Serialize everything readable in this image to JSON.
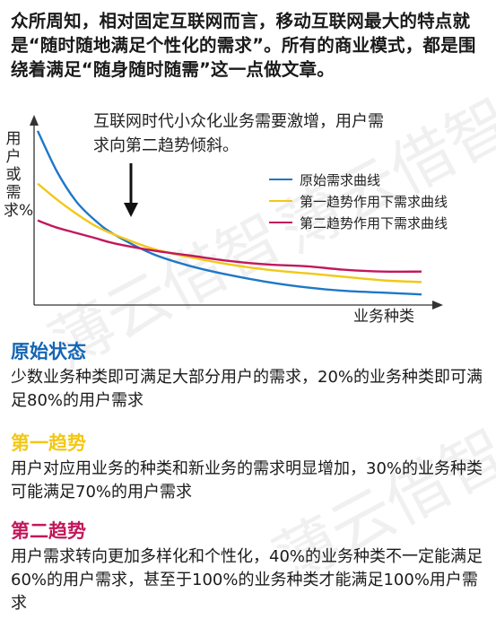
{
  "intro_text": "众所周知，相对固定互联网而言，移动互联网最大的特点就是“随时随地满足个性化的需求”。所有的商业模式，都是围绕着满足“随身随时随需”这一点做文章。",
  "watermark_text": "薄云借智",
  "chart_data": {
    "type": "line",
    "title": "",
    "annotation": "互联网时代小众化业务需要激增，用户需求向第二趋势倾斜。",
    "ylabel": "用户或需求%",
    "xlabel": "业务种类",
    "x": [
      0,
      0.05,
      0.1,
      0.15,
      0.2,
      0.3,
      0.4,
      0.5,
      0.6,
      0.7,
      0.8,
      0.9,
      1.0
    ],
    "ylim": [
      0,
      1
    ],
    "xlim": [
      0,
      1
    ],
    "grid": false,
    "legend_position": "right",
    "series": [
      {
        "name": "原始需求曲线",
        "color": "#1f77c8",
        "values": [
          0.97,
          0.74,
          0.57,
          0.46,
          0.38,
          0.27,
          0.2,
          0.15,
          0.11,
          0.08,
          0.06,
          0.05,
          0.04
        ]
      },
      {
        "name": "第一趋势作用下需求曲线",
        "color": "#f2c818",
        "values": [
          0.67,
          0.58,
          0.5,
          0.43,
          0.38,
          0.3,
          0.25,
          0.21,
          0.18,
          0.16,
          0.14,
          0.12,
          0.11
        ]
      },
      {
        "name": "第二趋势作用下需求曲线",
        "color": "#c2185b",
        "values": [
          0.46,
          0.42,
          0.39,
          0.36,
          0.33,
          0.29,
          0.26,
          0.23,
          0.21,
          0.2,
          0.18,
          0.17,
          0.17
        ]
      }
    ]
  },
  "sections": [
    {
      "heading": "原始状态",
      "heading_color": "#1466b4",
      "body": "少数业务种类即可满足大部分用户的需求，20%的业务种类即可满足80%的用户需求"
    },
    {
      "heading": "第一趋势",
      "heading_color": "#f2c818",
      "body": "用户对应用业务的种类和新业务的需求明显增加，30%的业务种类可能满足70%的用户需求"
    },
    {
      "heading": "第二趋势",
      "heading_color": "#c2185b",
      "body": "用户需求转向更加多样化和个性化，40%的业务种类不一定能满足60%的用户需求，甚至于100%的业务种类才能满足100%用户需求"
    }
  ]
}
